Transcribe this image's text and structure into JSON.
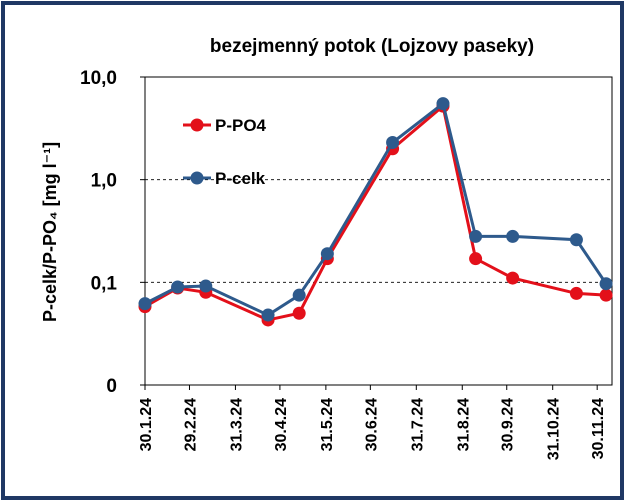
{
  "chart_data": {
    "type": "line",
    "title": "bezejmenný potok (Lojzovy paseky)",
    "y_label": "P-celk/P-PO₄ [mg l⁻¹]",
    "x": [
      "2024-01-30",
      "2024-02-21",
      "2024-03-11",
      "2024-04-22",
      "2024-05-13",
      "2024-06-01",
      "2024-07-15",
      "2024-08-18",
      "2024-09-09",
      "2024-10-04",
      "2024-11-16",
      "2024-12-06"
    ],
    "series": [
      {
        "name": "P-PO4",
        "color": "#e3101a",
        "values": [
          0.058,
          0.088,
          0.08,
          0.043,
          0.05,
          0.17,
          2.0,
          5.2,
          0.17,
          0.11,
          0.078,
          0.075
        ]
      },
      {
        "name": "P-celk",
        "color": "#2e5a8c",
        "values": [
          0.062,
          0.09,
          0.092,
          0.048,
          0.075,
          0.19,
          2.3,
          5.5,
          0.28,
          0.28,
          0.26,
          0.097
        ]
      }
    ],
    "xlim": [
      "2024-01-30",
      "2024-12-10"
    ],
    "xticks": [
      {
        "value": "2024-01-30",
        "label": "30.1.24"
      },
      {
        "value": "2024-02-29",
        "label": "29.2.24"
      },
      {
        "value": "2024-03-31",
        "label": "31.3.24"
      },
      {
        "value": "2024-04-30",
        "label": "30.4.24"
      },
      {
        "value": "2024-05-31",
        "label": "31.5.24"
      },
      {
        "value": "2024-06-30",
        "label": "30.6.24"
      },
      {
        "value": "2024-07-31",
        "label": "31.7.24"
      },
      {
        "value": "2024-08-31",
        "label": "31.8.24"
      },
      {
        "value": "2024-09-30",
        "label": "30.9.24"
      },
      {
        "value": "2024-10-31",
        "label": "31.10.24"
      },
      {
        "value": "2024-11-30",
        "label": "30.11.24"
      }
    ],
    "ylim": [
      0.01,
      10
    ],
    "yticks": [
      {
        "value": 0.01,
        "label": "0"
      },
      {
        "value": 0.1,
        "label": "0,1"
      },
      {
        "value": 1,
        "label": "1,0"
      },
      {
        "value": 10,
        "label": "10,0"
      }
    ],
    "log_y": true,
    "grid": true,
    "legend": "upper left"
  }
}
